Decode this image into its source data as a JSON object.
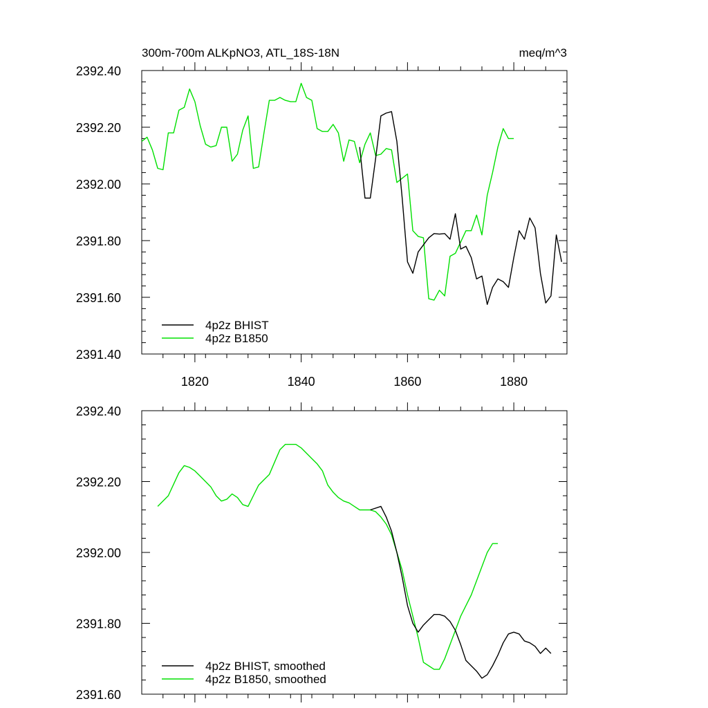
{
  "title_left": "300m-700m ALKpNO3, ATL_18S-18N",
  "title_right": "meq/m^3",
  "colors": {
    "bhist": "#000000",
    "b1850": "#00e000"
  },
  "chart_data": [
    {
      "type": "line",
      "title": "300m-700m ALKpNO3, ATL_18S-18N",
      "units": "meq/m^3",
      "xlim": [
        1810,
        1890
      ],
      "ylim": [
        2391.4,
        2392.4
      ],
      "x_ticks": [
        1820,
        1840,
        1860,
        1880
      ],
      "x_tick_labels": [
        "1820",
        "1840",
        "1860",
        "1880"
      ],
      "y_ticks": [
        2391.4,
        2391.6,
        2391.8,
        2392.0,
        2392.2,
        2392.4
      ],
      "y_tick_labels": [
        "2391.40",
        "2391.60",
        "2391.80",
        "2392.00",
        "2392.20",
        "2392.40"
      ],
      "legend_position": "bottom-left",
      "series": [
        {
          "name": "4p2z BHIST",
          "color": "#000000",
          "x": [
            1851,
            1852,
            1853,
            1854,
            1855,
            1856,
            1857,
            1858,
            1859,
            1860,
            1861,
            1862,
            1863,
            1864,
            1865,
            1866,
            1867,
            1868,
            1869,
            1870,
            1871,
            1872,
            1873,
            1874,
            1875,
            1876,
            1877,
            1878,
            1879,
            1880,
            1881,
            1882,
            1883,
            1884,
            1885,
            1886,
            1887,
            1888,
            1889
          ],
          "y": [
            2392.13,
            2391.95,
            2391.95,
            2392.09,
            2392.24,
            2392.25,
            2392.255,
            2392.15,
            2391.95,
            2391.725,
            2391.685,
            2391.76,
            2391.785,
            2391.81,
            2391.825,
            2391.823,
            2391.825,
            2391.805,
            2391.895,
            2391.77,
            2391.78,
            2391.74,
            2391.665,
            2391.675,
            2391.575,
            2391.635,
            2391.665,
            2391.655,
            2391.635,
            2391.74,
            2391.835,
            2391.805,
            2391.88,
            2391.845,
            2391.685,
            2391.58,
            2391.605,
            2391.82,
            2391.725
          ]
        },
        {
          "name": "4p2z B1850",
          "color": "#00e000",
          "x": [
            1810,
            1811,
            1812,
            1813,
            1814,
            1815,
            1816,
            1817,
            1818,
            1819,
            1820,
            1821,
            1822,
            1823,
            1824,
            1825,
            1826,
            1827,
            1828,
            1829,
            1830,
            1831,
            1832,
            1833,
            1834,
            1835,
            1836,
            1837,
            1838,
            1839,
            1840,
            1841,
            1842,
            1843,
            1844,
            1845,
            1846,
            1847,
            1848,
            1849,
            1850,
            1851,
            1852,
            1853,
            1854,
            1855,
            1856,
            1857,
            1858,
            1859,
            1860,
            1861,
            1862,
            1863,
            1864,
            1865,
            1866,
            1867,
            1868,
            1869,
            1870,
            1871,
            1872,
            1873,
            1874,
            1875,
            1876,
            1877,
            1878,
            1879,
            1880
          ],
          "y": [
            2392.15,
            2392.165,
            2392.12,
            2392.055,
            2392.05,
            2392.18,
            2392.18,
            2392.26,
            2392.27,
            2392.335,
            2392.29,
            2392.205,
            2392.14,
            2392.13,
            2392.135,
            2392.2,
            2392.2,
            2392.08,
            2392.105,
            2392.19,
            2392.24,
            2392.055,
            2392.06,
            2392.18,
            2392.295,
            2392.295,
            2392.305,
            2392.295,
            2392.29,
            2392.29,
            2392.355,
            2392.305,
            2392.295,
            2392.195,
            2392.185,
            2392.185,
            2392.21,
            2392.18,
            2392.08,
            2392.155,
            2392.15,
            2392.075,
            2392.14,
            2392.18,
            2392.1,
            2392.105,
            2392.125,
            2392.12,
            2392.005,
            2392.02,
            2392.035,
            2391.835,
            2391.815,
            2391.81,
            2391.595,
            2391.59,
            2391.625,
            2391.605,
            2391.745,
            2391.755,
            2391.795,
            2391.835,
            2391.835,
            2391.89,
            2391.82,
            2391.96,
            2392.04,
            2392.13,
            2392.195,
            2392.16,
            2392.16
          ]
        }
      ]
    },
    {
      "type": "line",
      "xlim": [
        1810,
        1890
      ],
      "ylim": [
        2391.6,
        2392.4
      ],
      "x_ticks": [
        1820,
        1840,
        1860,
        1880
      ],
      "y_ticks": [
        2391.6,
        2391.8,
        2392.0,
        2392.2,
        2392.4
      ],
      "y_tick_labels": [
        "2391.60",
        "2391.80",
        "2392.00",
        "2392.20",
        "2392.40"
      ],
      "legend_position": "bottom-left",
      "series": [
        {
          "name": "4p2z BHIST, smoothed",
          "color": "#000000",
          "x": [
            1853,
            1855,
            1856,
            1857,
            1858,
            1859,
            1860,
            1861,
            1862,
            1863,
            1864,
            1865,
            1866,
            1867,
            1868,
            1869,
            1870,
            1871,
            1872,
            1873,
            1874,
            1875,
            1876,
            1877,
            1878,
            1879,
            1880,
            1881,
            1882,
            1883,
            1884,
            1885,
            1886,
            1887
          ],
          "y": [
            2392.12,
            2392.13,
            2392.1,
            2392.06,
            2392.0,
            2391.93,
            2391.85,
            2391.8,
            2391.775,
            2391.795,
            2391.81,
            2391.825,
            2391.825,
            2391.82,
            2391.805,
            2391.78,
            2391.74,
            2391.695,
            2391.68,
            2391.665,
            2391.645,
            2391.655,
            2391.68,
            2391.71,
            2391.745,
            2391.77,
            2391.775,
            2391.77,
            2391.75,
            2391.745,
            2391.735,
            2391.715,
            2391.73,
            2391.715
          ]
        },
        {
          "name": "4p2z B1850, smoothed",
          "color": "#00e000",
          "x": [
            1813,
            1815,
            1817,
            1818,
            1819,
            1820,
            1821,
            1822,
            1823,
            1824,
            1825,
            1826,
            1827,
            1828,
            1829,
            1830,
            1831,
            1832,
            1833,
            1834,
            1835,
            1836,
            1837,
            1838,
            1839,
            1840,
            1841,
            1842,
            1843,
            1844,
            1845,
            1846,
            1847,
            1848,
            1849,
            1850,
            1851,
            1852,
            1853,
            1854,
            1855,
            1856,
            1857,
            1858,
            1859,
            1860,
            1861,
            1862,
            1863,
            1864,
            1865,
            1866,
            1867,
            1868,
            1869,
            1870,
            1871,
            1872,
            1873,
            1874,
            1875,
            1876,
            1877
          ],
          "y": [
            2392.13,
            2392.16,
            2392.225,
            2392.245,
            2392.24,
            2392.23,
            2392.215,
            2392.2,
            2392.185,
            2392.16,
            2392.145,
            2392.15,
            2392.165,
            2392.155,
            2392.135,
            2392.13,
            2392.16,
            2392.19,
            2392.205,
            2392.22,
            2392.255,
            2392.29,
            2392.305,
            2392.305,
            2392.305,
            2392.295,
            2392.28,
            2392.265,
            2392.25,
            2392.23,
            2392.19,
            2392.17,
            2392.155,
            2392.145,
            2392.14,
            2392.13,
            2392.12,
            2392.12,
            2392.12,
            2392.115,
            2392.1,
            2392.08,
            2392.05,
            2392.0,
            2391.95,
            2391.88,
            2391.82,
            2391.76,
            2391.69,
            2391.68,
            2391.67,
            2391.67,
            2391.7,
            2391.74,
            2391.78,
            2391.82,
            2391.85,
            2391.88,
            2391.92,
            2391.96,
            2392.0,
            2392.025,
            2392.025
          ]
        }
      ]
    }
  ]
}
